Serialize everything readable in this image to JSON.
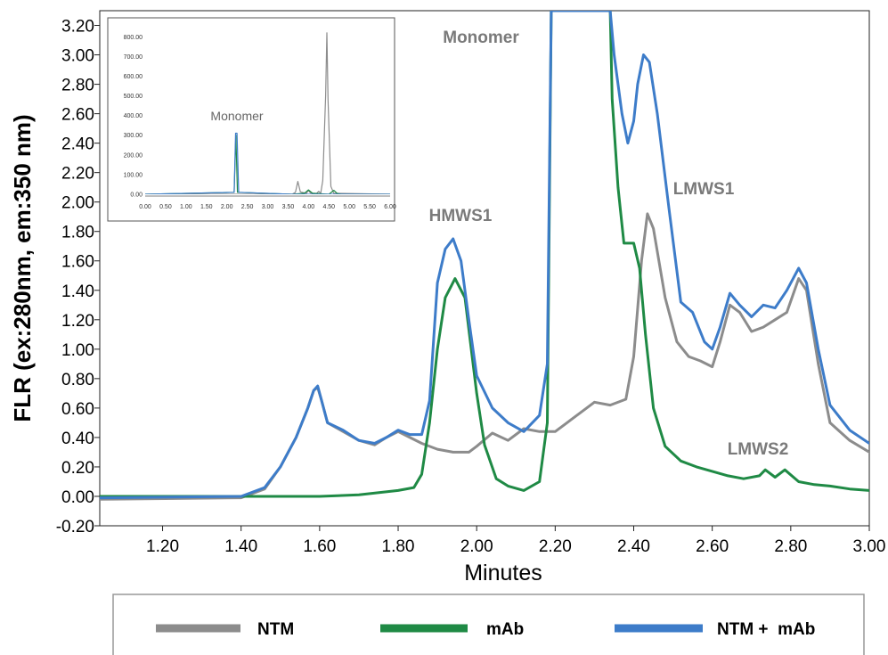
{
  "chart_data": [
    {
      "type": "line",
      "title": "",
      "xlabel": "Minutes",
      "ylabel": "FLR (ex:280nm, em:350 nm)",
      "xlim": [
        1.04,
        3.0
      ],
      "ylim": [
        -0.2,
        3.3
      ],
      "x_ticks": [
        "1.20",
        "1.40",
        "1.60",
        "1.80",
        "2.00",
        "2.20",
        "2.40",
        "2.60",
        "2.80",
        "3.00"
      ],
      "y_ticks": [
        "-0.20",
        "0.00",
        "0.20",
        "0.40",
        "0.60",
        "0.80",
        "1.00",
        "1.20",
        "1.40",
        "1.60",
        "1.80",
        "2.00",
        "2.20",
        "2.40",
        "2.60",
        "2.80",
        "3.00",
        "3.20"
      ],
      "grid": false,
      "legend": "bottom",
      "annotations": [
        "Monomer",
        "HMWS1",
        "LMWS1",
        "LMWS2"
      ],
      "series": [
        {
          "name": "NTM",
          "color": "#8c8c8c",
          "x": [
            1.04,
            1.4,
            1.46,
            1.5,
            1.54,
            1.57,
            1.585,
            1.595,
            1.605,
            1.62,
            1.66,
            1.7,
            1.74,
            1.77,
            1.8,
            1.83,
            1.86,
            1.9,
            1.94,
            1.98,
            2.0,
            2.04,
            2.08,
            2.12,
            2.16,
            2.2,
            2.24,
            2.28,
            2.3,
            2.34,
            2.38,
            2.4,
            2.42,
            2.435,
            2.45,
            2.48,
            2.51,
            2.54,
            2.57,
            2.6,
            2.62,
            2.645,
            2.67,
            2.7,
            2.73,
            2.76,
            2.79,
            2.82,
            2.84,
            2.87,
            2.9,
            2.95,
            3.0
          ],
          "y": [
            -0.02,
            -0.01,
            0.05,
            0.2,
            0.4,
            0.6,
            0.72,
            0.74,
            0.65,
            0.5,
            0.44,
            0.38,
            0.35,
            0.4,
            0.44,
            0.4,
            0.36,
            0.32,
            0.3,
            0.3,
            0.34,
            0.43,
            0.38,
            0.46,
            0.44,
            0.44,
            0.52,
            0.6,
            0.64,
            0.62,
            0.66,
            0.95,
            1.6,
            1.92,
            1.82,
            1.35,
            1.05,
            0.95,
            0.92,
            0.88,
            1.05,
            1.3,
            1.25,
            1.12,
            1.15,
            1.2,
            1.25,
            1.48,
            1.4,
            0.9,
            0.5,
            0.38,
            0.3
          ]
        },
        {
          "name": "mAb",
          "color": "#1f8a45",
          "x": [
            1.04,
            1.4,
            1.5,
            1.6,
            1.7,
            1.8,
            1.84,
            1.86,
            1.88,
            1.9,
            1.92,
            1.945,
            1.97,
            2.0,
            2.02,
            2.05,
            2.08,
            2.12,
            2.16,
            2.18,
            2.19,
            2.34,
            2.345,
            2.36,
            2.375,
            2.4,
            2.415,
            2.43,
            2.45,
            2.48,
            2.52,
            2.56,
            2.6,
            2.64,
            2.68,
            2.72,
            2.735,
            2.76,
            2.785,
            2.82,
            2.86,
            2.9,
            2.95,
            3.0
          ],
          "y": [
            0.0,
            0.0,
            0.0,
            0.0,
            0.01,
            0.04,
            0.06,
            0.15,
            0.5,
            1.0,
            1.35,
            1.48,
            1.35,
            0.7,
            0.35,
            0.12,
            0.07,
            0.04,
            0.1,
            0.5,
            3.3,
            3.3,
            2.7,
            2.1,
            1.72,
            1.72,
            1.55,
            1.1,
            0.6,
            0.34,
            0.24,
            0.2,
            0.17,
            0.14,
            0.12,
            0.14,
            0.18,
            0.13,
            0.18,
            0.1,
            0.08,
            0.07,
            0.05,
            0.04
          ]
        },
        {
          "name": "NTM + mAb",
          "color": "#3d7cc9",
          "x": [
            1.04,
            1.4,
            1.46,
            1.5,
            1.54,
            1.57,
            1.585,
            1.595,
            1.605,
            1.62,
            1.66,
            1.7,
            1.74,
            1.77,
            1.8,
            1.83,
            1.86,
            1.88,
            1.9,
            1.92,
            1.94,
            1.96,
            1.98,
            2.0,
            2.04,
            2.08,
            2.12,
            2.16,
            2.18,
            2.19,
            2.34,
            2.35,
            2.37,
            2.385,
            2.4,
            2.41,
            2.425,
            2.44,
            2.46,
            2.49,
            2.52,
            2.55,
            2.58,
            2.6,
            2.62,
            2.645,
            2.67,
            2.7,
            2.73,
            2.76,
            2.79,
            2.82,
            2.84,
            2.87,
            2.9,
            2.95,
            3.0
          ],
          "y": [
            -0.01,
            0.0,
            0.06,
            0.2,
            0.4,
            0.6,
            0.72,
            0.75,
            0.65,
            0.5,
            0.45,
            0.38,
            0.36,
            0.4,
            0.45,
            0.42,
            0.42,
            0.65,
            1.45,
            1.68,
            1.75,
            1.6,
            1.2,
            0.82,
            0.6,
            0.5,
            0.44,
            0.55,
            0.9,
            3.3,
            3.3,
            3.0,
            2.6,
            2.4,
            2.55,
            2.8,
            3.0,
            2.95,
            2.6,
            1.95,
            1.32,
            1.25,
            1.05,
            1.0,
            1.15,
            1.38,
            1.3,
            1.22,
            1.3,
            1.28,
            1.4,
            1.55,
            1.45,
            1.0,
            0.62,
            0.45,
            0.36
          ]
        }
      ]
    },
    {
      "type": "line",
      "title": "",
      "annotations": [
        "Monomer"
      ],
      "xlim": [
        0,
        6.0
      ],
      "ylim": [
        0,
        860
      ],
      "x_ticks": [
        "0.00",
        "0.50",
        "1.00",
        "1.50",
        "2.00",
        "2.50",
        "3.00",
        "3.50",
        "4.00",
        "4.50",
        "5.00",
        "5.50",
        "6.00"
      ],
      "y_ticks": [
        "0.00",
        "100.00",
        "200.00",
        "300.00",
        "400.00",
        "500.00",
        "600.00",
        "700.00",
        "800.00"
      ],
      "series": [
        {
          "color": "#8c8c8c",
          "x": [
            0,
            2.18,
            2.22,
            2.26,
            3.6,
            3.68,
            3.74,
            3.8,
            3.95,
            4.0,
            4.05,
            4.2,
            4.25,
            4.3,
            4.35,
            4.42,
            4.45,
            4.48,
            4.55,
            4.62,
            6.0
          ],
          "y": [
            0,
            0,
            0,
            0,
            0,
            10,
            65,
            12,
            5,
            20,
            6,
            4,
            15,
            5,
            70,
            500,
            820,
            480,
            40,
            5,
            0
          ]
        },
        {
          "color": "#1f8a45",
          "x": [
            0,
            2.18,
            2.22,
            2.26,
            3.6,
            3.9,
            4.0,
            4.1,
            4.5,
            4.62,
            4.7,
            4.8,
            6.0
          ],
          "y": [
            0,
            10,
            300,
            10,
            0,
            5,
            22,
            5,
            0,
            20,
            5,
            0,
            0
          ]
        },
        {
          "color": "#3d7cc9",
          "x": [
            0,
            2.18,
            2.215,
            2.25,
            2.29,
            3.6,
            6.0
          ],
          "y": [
            0,
            10,
            310,
            310,
            10,
            0,
            0
          ]
        }
      ]
    }
  ],
  "legend": {
    "items": [
      {
        "label": "NTM",
        "color": "#8c8c8c"
      },
      {
        "label": "mAb",
        "color": "#1f8a45"
      },
      {
        "label": "NTM +  mAb",
        "color": "#3d7cc9"
      }
    ]
  }
}
